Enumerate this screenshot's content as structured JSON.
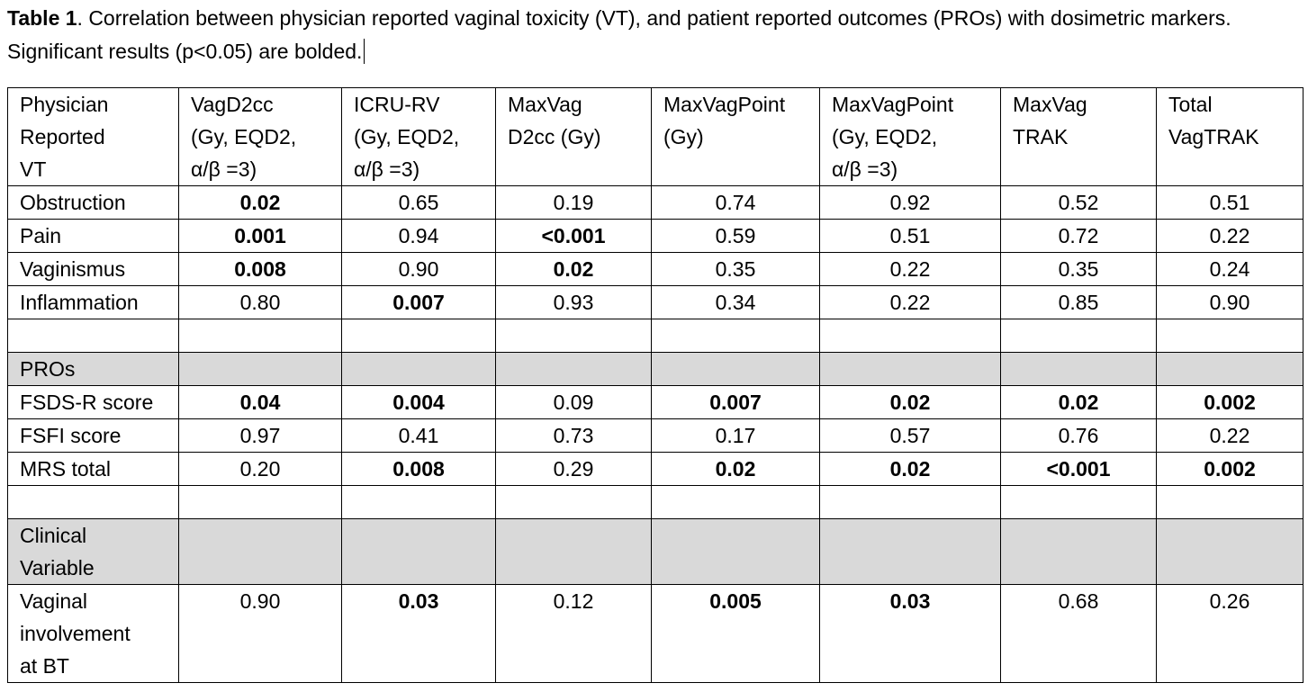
{
  "caption": {
    "label": "Table 1",
    "text": ". Correlation between physician reported vaginal toxicity (VT), and patient reported outcomes (PROs) with dosimetric markers. Significant results (p<0.05) are bolded."
  },
  "table": {
    "header": {
      "c0": [
        "Physician",
        "Reported",
        "VT"
      ],
      "c1": [
        "VagD2cc",
        "(Gy, EQD2,",
        "α/β =3)"
      ],
      "c2": [
        "ICRU-RV",
        "(Gy, EQD2,",
        "α/β =3)"
      ],
      "c3": [
        "MaxVag",
        "D2cc (Gy)"
      ],
      "c4": [
        "MaxVagPoint",
        "(Gy)"
      ],
      "c5": [
        "MaxVagPoint",
        "(Gy, EQD2,",
        "α/β =3)"
      ],
      "c6": [
        "MaxVag",
        "TRAK"
      ],
      "c7": [
        "Total",
        "VagTRAK"
      ]
    },
    "r1": {
      "label": "Obstruction",
      "v1": "0.02",
      "v2": "0.65",
      "v3": "0.19",
      "v4": "0.74",
      "v5": "0.92",
      "v6": "0.52",
      "v7": "0.51"
    },
    "r2": {
      "label": "Pain",
      "v1": "0.001",
      "v2": "0.94",
      "v3": "<0.001",
      "v4": "0.59",
      "v5": "0.51",
      "v6": "0.72",
      "v7": "0.22"
    },
    "r3": {
      "label": "Vaginismus",
      "v1": "0.008",
      "v2": "0.90",
      "v3": "0.02",
      "v4": "0.35",
      "v5": "0.22",
      "v6": "0.35",
      "v7": "0.24"
    },
    "r4": {
      "label": "Inflammation",
      "v1": "0.80",
      "v2": "0.007",
      "v3": "0.93",
      "v4": "0.34",
      "v5": "0.22",
      "v6": "0.85",
      "v7": "0.90"
    },
    "sec_pros": "PROs",
    "r5": {
      "label": "FSDS-R score",
      "v1": "0.04",
      "v2": "0.004",
      "v3": "0.09",
      "v4": "0.007",
      "v5": "0.02",
      "v6": "0.02",
      "v7": "0.002"
    },
    "r6": {
      "label": "FSFI score",
      "v1": "0.97",
      "v2": "0.41",
      "v3": "0.73",
      "v4": "0.17",
      "v5": "0.57",
      "v6": "0.76",
      "v7": "0.22"
    },
    "r7": {
      "label": "MRS total",
      "v1": "0.20",
      "v2": "0.008",
      "v3": "0.29",
      "v4": "0.02",
      "v5": "0.02",
      "v6": "<0.001",
      "v7": "0.002"
    },
    "sec_clinical": [
      "Clinical",
      "Variable"
    ],
    "r8": {
      "label": [
        "Vaginal",
        "involvement",
        "at BT"
      ],
      "v1": "0.90",
      "v2": "0.03",
      "v3": "0.12",
      "v4": "0.005",
      "v5": "0.03",
      "v6": "0.68",
      "v7": "0.26"
    }
  },
  "shade_color": "#d9d9d9"
}
